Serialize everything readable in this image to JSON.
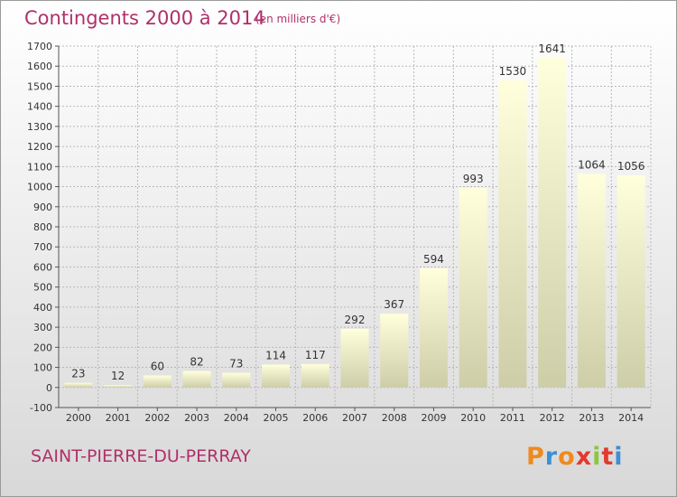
{
  "header": {
    "title": "Contingents 2000 à 2014",
    "subtitle": "(en milliers d'€)"
  },
  "footer": {
    "place": "SAINT-PIERRE-DU-PERRAY",
    "logo_text": "Proxiti",
    "logo_colors": [
      "#f08a1c",
      "#3d8fd6",
      "#f08a1c",
      "#e23b2e",
      "#8dc63f",
      "#e23b2e",
      "#3d8fd6"
    ]
  },
  "colors": {
    "title": "#b0306a",
    "bar_top": "#ffffdc",
    "bar_bottom": "#cdcda8",
    "grid": "#b8b8b8"
  },
  "chart_data": {
    "type": "bar",
    "title": "Contingents 2000 à 2014",
    "subtitle": "(en milliers d'€)",
    "categories": [
      "2000",
      "2001",
      "2002",
      "2003",
      "2004",
      "2005",
      "2006",
      "2007",
      "2008",
      "2009",
      "2010",
      "2011",
      "2012",
      "2013",
      "2014"
    ],
    "values": [
      23,
      12,
      60,
      82,
      73,
      114,
      117,
      292,
      367,
      594,
      993,
      1530,
      1641,
      1064,
      1056
    ],
    "ylim": [
      -100,
      1700
    ],
    "yticks": [
      -100,
      0,
      100,
      200,
      300,
      400,
      500,
      600,
      700,
      800,
      900,
      1000,
      1100,
      1200,
      1300,
      1400,
      1500,
      1600,
      1700
    ],
    "grid": true,
    "xlabel": "",
    "ylabel": ""
  }
}
